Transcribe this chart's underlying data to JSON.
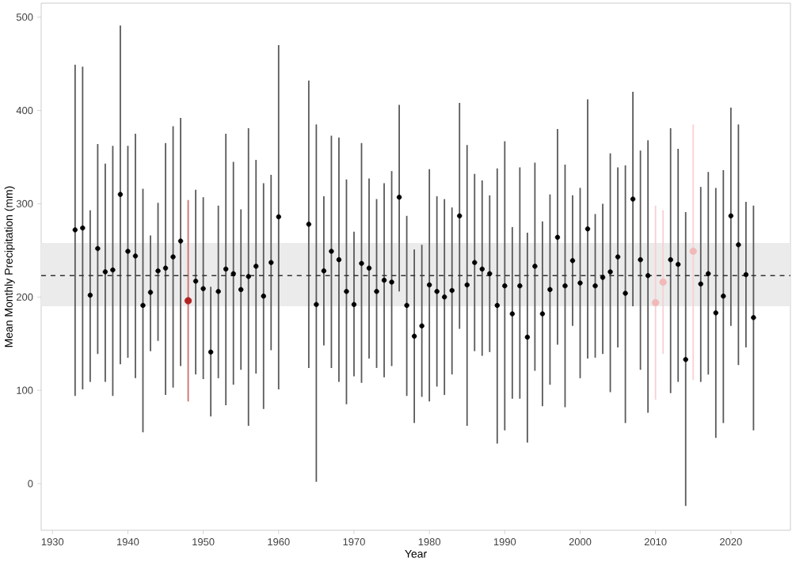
{
  "chart_data": {
    "type": "scatter",
    "xlabel": "Year",
    "ylabel": "Mean Monthly Precipitation (mm)",
    "x": [
      1933,
      1934,
      1935,
      1936,
      1937,
      1938,
      1939,
      1940,
      1941,
      1942,
      1943,
      1944,
      1945,
      1946,
      1947,
      1948,
      1949,
      1950,
      1951,
      1952,
      1953,
      1954,
      1955,
      1956,
      1957,
      1958,
      1959,
      1960,
      1964,
      1965,
      1966,
      1967,
      1968,
      1969,
      1970,
      1971,
      1972,
      1973,
      1974,
      1975,
      1976,
      1977,
      1978,
      1979,
      1980,
      1981,
      1982,
      1983,
      1984,
      1985,
      1986,
      1987,
      1988,
      1989,
      1990,
      1991,
      1992,
      1993,
      1994,
      1995,
      1996,
      1997,
      1998,
      1999,
      2000,
      2001,
      2002,
      2003,
      2004,
      2005,
      2006,
      2007,
      2008,
      2009,
      2010,
      2011,
      2012,
      2013,
      2014,
      2015,
      2016,
      2017,
      2018,
      2019,
      2020,
      2021,
      2022,
      2023
    ],
    "values": [
      272,
      274,
      202,
      252,
      227,
      229,
      310,
      249,
      244,
      191,
      205,
      228,
      231,
      243,
      260,
      196,
      217,
      209,
      141,
      206,
      230,
      225,
      208,
      222,
      233,
      201,
      237,
      286,
      278,
      192,
      228,
      249,
      240,
      206,
      192,
      236,
      231,
      206,
      218,
      216,
      307,
      191,
      158,
      169,
      213,
      206,
      200,
      207,
      287,
      213,
      237,
      230,
      225,
      191,
      212,
      182,
      212,
      157,
      233,
      182,
      208,
      264,
      212,
      239,
      215,
      273,
      212,
      221,
      227,
      243,
      204,
      305,
      240,
      223,
      194,
      216,
      240,
      235,
      133,
      249,
      214,
      225,
      183,
      201,
      287,
      256,
      224,
      178
    ],
    "errors": [
      [
        94,
        449
      ],
      [
        101,
        447
      ],
      [
        109,
        293
      ],
      [
        139,
        364
      ],
      [
        109,
        343
      ],
      [
        94,
        362
      ],
      [
        128,
        491
      ],
      [
        135,
        362
      ],
      [
        113,
        375
      ],
      [
        55,
        316
      ],
      [
        142,
        266
      ],
      [
        153,
        301
      ],
      [
        95,
        365
      ],
      [
        103,
        383
      ],
      [
        126,
        392
      ],
      [
        88,
        304
      ],
      [
        117,
        315
      ],
      [
        112,
        307
      ],
      [
        72,
        211
      ],
      [
        113,
        298
      ],
      [
        84,
        375
      ],
      [
        106,
        345
      ],
      [
        122,
        294
      ],
      [
        62,
        381
      ],
      [
        118,
        347
      ],
      [
        80,
        322
      ],
      [
        143,
        331
      ],
      [
        101,
        470
      ],
      [
        124,
        432
      ],
      [
        2,
        385
      ],
      [
        148,
        308
      ],
      [
        124,
        373
      ],
      [
        109,
        371
      ],
      [
        85,
        326
      ],
      [
        115,
        270
      ],
      [
        108,
        365
      ],
      [
        134,
        327
      ],
      [
        124,
        305
      ],
      [
        114,
        322
      ],
      [
        126,
        335
      ],
      [
        206,
        406
      ],
      [
        94,
        287
      ],
      [
        65,
        251
      ],
      [
        93,
        256
      ],
      [
        88,
        337
      ],
      [
        104,
        308
      ],
      [
        95,
        305
      ],
      [
        117,
        296
      ],
      [
        166,
        408
      ],
      [
        62,
        363
      ],
      [
        142,
        332
      ],
      [
        137,
        325
      ],
      [
        141,
        309
      ],
      [
        43,
        338
      ],
      [
        57,
        367
      ],
      [
        91,
        275
      ],
      [
        91,
        339
      ],
      [
        44,
        269
      ],
      [
        121,
        344
      ],
      [
        83,
        281
      ],
      [
        106,
        310
      ],
      [
        149,
        380
      ],
      [
        82,
        342
      ],
      [
        169,
        309
      ],
      [
        113,
        317
      ],
      [
        134,
        412
      ],
      [
        135,
        289
      ],
      [
        139,
        300
      ],
      [
        98,
        354
      ],
      [
        146,
        339
      ],
      [
        65,
        341
      ],
      [
        190,
        420
      ],
      [
        122,
        357
      ],
      [
        76,
        368
      ],
      [
        90,
        298
      ],
      [
        139,
        293
      ],
      [
        97,
        381
      ],
      [
        109,
        359
      ],
      [
        -24,
        291
      ],
      [
        111,
        385
      ],
      [
        109,
        318
      ],
      [
        117,
        334
      ],
      [
        49,
        317
      ],
      [
        65,
        336
      ],
      [
        169,
        403
      ],
      [
        127,
        385
      ],
      [
        146,
        302
      ],
      [
        57,
        298
      ]
    ],
    "colors": [
      "#000000",
      "#000000",
      "#000000",
      "#000000",
      "#000000",
      "#000000",
      "#000000",
      "#000000",
      "#000000",
      "#000000",
      "#000000",
      "#000000",
      "#000000",
      "#000000",
      "#000000",
      "#b22222",
      "#000000",
      "#000000",
      "#000000",
      "#000000",
      "#000000",
      "#000000",
      "#000000",
      "#000000",
      "#000000",
      "#000000",
      "#000000",
      "#000000",
      "#000000",
      "#000000",
      "#000000",
      "#000000",
      "#000000",
      "#000000",
      "#000000",
      "#000000",
      "#000000",
      "#000000",
      "#000000",
      "#000000",
      "#000000",
      "#000000",
      "#000000",
      "#000000",
      "#000000",
      "#000000",
      "#000000",
      "#000000",
      "#000000",
      "#000000",
      "#000000",
      "#000000",
      "#000000",
      "#000000",
      "#000000",
      "#000000",
      "#000000",
      "#000000",
      "#000000",
      "#000000",
      "#000000",
      "#000000",
      "#000000",
      "#000000",
      "#000000",
      "#000000",
      "#000000",
      "#000000",
      "#000000",
      "#000000",
      "#000000",
      "#000000",
      "#000000",
      "#000000",
      "#f2b8b8",
      "#f2b8b8",
      "#000000",
      "#000000",
      "#000000",
      "#f2b8b8",
      "#000000",
      "#000000",
      "#000000",
      "#000000",
      "#000000",
      "#000000",
      "#000000",
      "#000000"
    ],
    "xlim": [
      1928.5,
      2027.9
    ],
    "ylim": [
      -50,
      515
    ],
    "xticks": [
      1930,
      1940,
      1950,
      1960,
      1970,
      1980,
      1990,
      2000,
      2010,
      2020
    ],
    "yticks": [
      0,
      100,
      200,
      300,
      400,
      500
    ],
    "ref_lines": [
      {
        "axis": "y",
        "value": 223,
        "line_style": "dashed",
        "color": "#333333"
      }
    ],
    "bands": [
      {
        "axis": "y",
        "from": 190,
        "to": 258,
        "color": "#ebebeb"
      }
    ],
    "grid": false
  }
}
